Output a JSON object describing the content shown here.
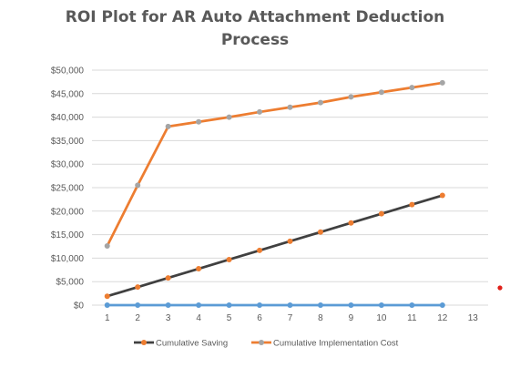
{
  "colors": {
    "saving": "#ed7d31",
    "cost": "#a5a5a5",
    "baseline": "#5b9bd5",
    "cost_line": "#ed7d31",
    "saving_line": "#404040",
    "axis": "#d9d9d9",
    "text": "#595959",
    "stray_dot": "#e0201a"
  },
  "chart_data": {
    "type": "line",
    "title_line1": "ROI Plot for AR Auto Attachment Deduction",
    "title_line2": "Process",
    "xlabel": "",
    "ylabel": "",
    "x": [
      1,
      2,
      3,
      4,
      5,
      6,
      7,
      8,
      9,
      10,
      11,
      12
    ],
    "x_ticks": [
      "1",
      "2",
      "3",
      "4",
      "5",
      "6",
      "7",
      "8",
      "9",
      "10",
      "11",
      "12",
      "13"
    ],
    "y_ticks": [
      "$0",
      "$5,000",
      "$10,000",
      "$15,000",
      "$20,000",
      "$25,000",
      "$30,000",
      "$35,000",
      "$40,000",
      "$45,000",
      "$50,000"
    ],
    "ylim": [
      0,
      50000
    ],
    "xlim": [
      0.5,
      13.5
    ],
    "grid": "horizontal",
    "legend_placement": "bottom",
    "series": [
      {
        "name": "Cumulative Saving",
        "line_color": "#404040",
        "marker_color": "#ed7d31",
        "values": [
          1900,
          3850,
          5800,
          7750,
          9700,
          11650,
          13600,
          15550,
          17500,
          19450,
          21400,
          23350
        ]
      },
      {
        "name": "Cumulative Implementation Cost",
        "line_color": "#ed7d31",
        "marker_color": "#a5a5a5",
        "values": [
          12600,
          25500,
          38000,
          39000,
          40000,
          41100,
          42100,
          43100,
          44300,
          45300,
          46300,
          47300
        ]
      },
      {
        "name": "",
        "line_color": "#5b9bd5",
        "marker_color": "#5b9bd5",
        "values": [
          0,
          0,
          0,
          0,
          0,
          0,
          0,
          0,
          0,
          0,
          0,
          0
        ]
      }
    ]
  }
}
